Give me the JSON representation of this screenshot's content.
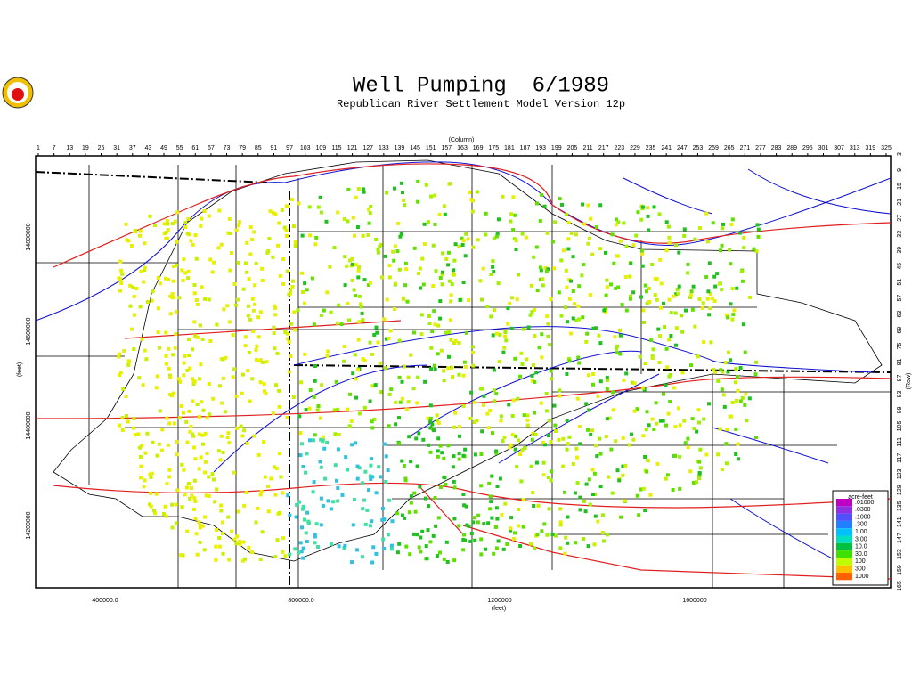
{
  "header": {
    "title": "Well Pumping  6/1989",
    "subtitle": "Republican River Settlement Model Version 12p"
  },
  "map": {
    "column_axis_title": "(Column)",
    "column_labels": [
      1,
      7,
      13,
      19,
      25,
      31,
      37,
      43,
      49,
      55,
      61,
      67,
      73,
      79,
      85,
      91,
      97,
      103,
      109,
      115,
      121,
      127,
      133,
      139,
      145,
      151,
      157,
      163,
      169,
      175,
      181,
      187,
      193,
      199,
      205,
      211,
      217,
      223,
      229,
      235,
      241,
      247,
      253,
      259,
      265,
      271,
      277,
      283,
      289,
      295,
      301,
      307,
      313,
      319,
      325
    ],
    "row_axis_title": "(Row)",
    "row_labels": [
      3,
      9,
      15,
      21,
      27,
      33,
      39,
      45,
      51,
      57,
      63,
      69,
      75,
      81,
      87,
      93,
      99,
      105,
      111,
      117,
      123,
      129,
      135,
      141,
      147,
      153,
      159,
      165
    ],
    "x_axis_title": "(feet)",
    "x_labels": [
      "400000.0",
      "800000.0",
      "1200000",
      "1600000"
    ],
    "y_axis_title": "(feet)",
    "y_labels": [
      "14800000",
      "14600000",
      "14400000",
      "14200000"
    ]
  },
  "legend": {
    "title": "acre-feet",
    "items": [
      {
        "label": ".01000",
        "color": "#c000c0"
      },
      {
        "label": ".0300",
        "color": "#9030e0"
      },
      {
        "label": ".1000",
        "color": "#5050ff"
      },
      {
        "label": ".300",
        "color": "#2080ff"
      },
      {
        "label": "1.00",
        "color": "#00c0ff"
      },
      {
        "label": "3.00",
        "color": "#00e0c0"
      },
      {
        "label": "10.0",
        "color": "#00c040"
      },
      {
        "label": "30.0",
        "color": "#40e000"
      },
      {
        "label": "100",
        "color": "#c0ff00"
      },
      {
        "label": "300",
        "color": "#ffc000"
      },
      {
        "label": "1000",
        "color": "#ff6000"
      }
    ]
  }
}
